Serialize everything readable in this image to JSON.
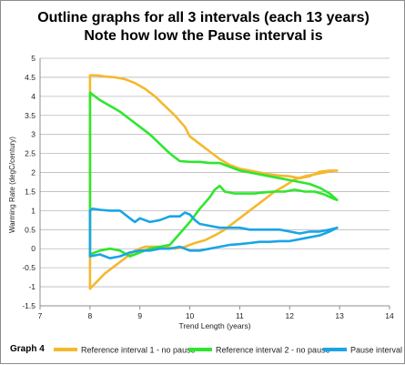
{
  "figure": {
    "title_line1": "Outline graphs for all 3 intervals (each 13 years)",
    "title_line2": "Note how low the Pause interval is",
    "graph_label": "Graph 4"
  },
  "chart_data": {
    "type": "line",
    "title": "Outline graphs for all 3 intervals (each 13 years)",
    "subtitle": "Note how low the Pause interval is",
    "xlabel": "Trend Length  (years)",
    "ylabel": "Warming Rate (degC/century)",
    "xlim": [
      7,
      14
    ],
    "ylim": [
      -1.5,
      5
    ],
    "xticks": [
      "7",
      "8",
      "9",
      "10",
      "11",
      "12",
      "13",
      "14"
    ],
    "yticks": [
      "-1.5",
      "-1",
      "-0.5",
      "0",
      "0.5",
      "1",
      "1.5",
      "2",
      "2.5",
      "3",
      "3.5",
      "4",
      "4.5",
      "5"
    ],
    "grid": "horizontal",
    "legend_position": "bottom",
    "series": [
      {
        "name": "Reference interval  1 - no pause",
        "color": "#f5b82e",
        "points": [
          [
            8,
            -1.05
          ],
          [
            8.15,
            -0.85
          ],
          [
            8.3,
            -0.65
          ],
          [
            8.5,
            -0.45
          ],
          [
            8.7,
            -0.25
          ],
          [
            8.9,
            -0.05
          ],
          [
            9.1,
            0.05
          ],
          [
            9.3,
            0.05
          ],
          [
            9.5,
            0.05
          ],
          [
            9.7,
            0.0
          ],
          [
            9.9,
            0.05
          ],
          [
            10.1,
            0.15
          ],
          [
            10.3,
            0.22
          ],
          [
            10.5,
            0.35
          ],
          [
            10.7,
            0.5
          ],
          [
            10.9,
            0.7
          ],
          [
            11.1,
            0.9
          ],
          [
            11.3,
            1.1
          ],
          [
            11.5,
            1.3
          ],
          [
            11.7,
            1.5
          ],
          [
            11.9,
            1.65
          ],
          [
            12.1,
            1.82
          ],
          [
            12.3,
            1.9
          ],
          [
            12.5,
            1.95
          ],
          [
            12.7,
            2.0
          ],
          [
            12.9,
            2.05
          ],
          [
            12.95,
            2.05
          ],
          [
            12.8,
            2.05
          ],
          [
            12.6,
            2.02
          ],
          [
            12.4,
            1.9
          ],
          [
            12.2,
            1.85
          ],
          [
            12.0,
            1.9
          ],
          [
            11.8,
            1.92
          ],
          [
            11.6,
            1.95
          ],
          [
            11.4,
            2.0
          ],
          [
            11.2,
            2.05
          ],
          [
            11.0,
            2.1
          ],
          [
            10.8,
            2.2
          ],
          [
            10.6,
            2.35
          ],
          [
            10.4,
            2.55
          ],
          [
            10.2,
            2.75
          ],
          [
            10.0,
            2.95
          ],
          [
            9.9,
            3.2
          ],
          [
            9.7,
            3.5
          ],
          [
            9.5,
            3.75
          ],
          [
            9.3,
            4.0
          ],
          [
            9.1,
            4.2
          ],
          [
            8.9,
            4.35
          ],
          [
            8.7,
            4.45
          ],
          [
            8.5,
            4.5
          ],
          [
            8.3,
            4.52
          ],
          [
            8.15,
            4.55
          ],
          [
            8,
            4.55
          ],
          [
            8,
            -1.05
          ]
        ]
      },
      {
        "name": "Reference interval  2 - no pause",
        "color": "#2ee62e",
        "points": [
          [
            8,
            -0.15
          ],
          [
            8.2,
            -0.05
          ],
          [
            8.4,
            0.0
          ],
          [
            8.6,
            -0.05
          ],
          [
            8.8,
            -0.2
          ],
          [
            9.0,
            -0.1
          ],
          [
            9.2,
            0.0
          ],
          [
            9.4,
            0.05
          ],
          [
            9.6,
            0.1
          ],
          [
            9.8,
            0.4
          ],
          [
            10.0,
            0.7
          ],
          [
            10.2,
            1.05
          ],
          [
            10.4,
            1.35
          ],
          [
            10.5,
            1.55
          ],
          [
            10.6,
            1.65
          ],
          [
            10.7,
            1.5
          ],
          [
            10.9,
            1.45
          ],
          [
            11.1,
            1.45
          ],
          [
            11.3,
            1.45
          ],
          [
            11.5,
            1.48
          ],
          [
            11.7,
            1.5
          ],
          [
            11.9,
            1.5
          ],
          [
            12.1,
            1.55
          ],
          [
            12.3,
            1.5
          ],
          [
            12.5,
            1.5
          ],
          [
            12.7,
            1.42
          ],
          [
            12.9,
            1.3
          ],
          [
            12.95,
            1.28
          ],
          [
            12.8,
            1.45
          ],
          [
            12.6,
            1.6
          ],
          [
            12.4,
            1.7
          ],
          [
            12.2,
            1.75
          ],
          [
            12.0,
            1.8
          ],
          [
            11.8,
            1.85
          ],
          [
            11.6,
            1.9
          ],
          [
            11.4,
            1.95
          ],
          [
            11.2,
            2.0
          ],
          [
            11.0,
            2.05
          ],
          [
            10.8,
            2.15
          ],
          [
            10.6,
            2.25
          ],
          [
            10.4,
            2.25
          ],
          [
            10.2,
            2.28
          ],
          [
            10.0,
            2.28
          ],
          [
            9.8,
            2.3
          ],
          [
            9.6,
            2.5
          ],
          [
            9.4,
            2.75
          ],
          [
            9.2,
            3.0
          ],
          [
            9.0,
            3.2
          ],
          [
            8.8,
            3.4
          ],
          [
            8.6,
            3.6
          ],
          [
            8.4,
            3.75
          ],
          [
            8.2,
            3.9
          ],
          [
            8.05,
            4.05
          ],
          [
            8,
            4.1
          ],
          [
            8,
            -0.15
          ]
        ]
      },
      {
        "name": "Pause interval",
        "color": "#1aa5e6",
        "points": [
          [
            8,
            -0.2
          ],
          [
            8.2,
            -0.15
          ],
          [
            8.4,
            -0.25
          ],
          [
            8.6,
            -0.2
          ],
          [
            8.8,
            -0.1
          ],
          [
            9.0,
            -0.05
          ],
          [
            9.2,
            -0.05
          ],
          [
            9.4,
            0.0
          ],
          [
            9.6,
            0.0
          ],
          [
            9.8,
            0.05
          ],
          [
            10.0,
            -0.05
          ],
          [
            10.2,
            -0.05
          ],
          [
            10.4,
            0.0
          ],
          [
            10.6,
            0.05
          ],
          [
            10.8,
            0.1
          ],
          [
            11.0,
            0.12
          ],
          [
            11.2,
            0.15
          ],
          [
            11.4,
            0.18
          ],
          [
            11.6,
            0.18
          ],
          [
            11.8,
            0.2
          ],
          [
            12.0,
            0.2
          ],
          [
            12.2,
            0.25
          ],
          [
            12.4,
            0.3
          ],
          [
            12.6,
            0.35
          ],
          [
            12.8,
            0.45
          ],
          [
            12.95,
            0.55
          ],
          [
            12.8,
            0.5
          ],
          [
            12.6,
            0.45
          ],
          [
            12.4,
            0.45
          ],
          [
            12.2,
            0.4
          ],
          [
            12.0,
            0.45
          ],
          [
            11.8,
            0.5
          ],
          [
            11.6,
            0.5
          ],
          [
            11.4,
            0.5
          ],
          [
            11.2,
            0.5
          ],
          [
            11.0,
            0.55
          ],
          [
            10.8,
            0.55
          ],
          [
            10.6,
            0.55
          ],
          [
            10.4,
            0.6
          ],
          [
            10.2,
            0.65
          ],
          [
            10.1,
            0.75
          ],
          [
            10.0,
            0.9
          ],
          [
            9.9,
            0.95
          ],
          [
            9.8,
            0.85
          ],
          [
            9.6,
            0.85
          ],
          [
            9.4,
            0.75
          ],
          [
            9.2,
            0.7
          ],
          [
            9.0,
            0.8
          ],
          [
            8.9,
            0.7
          ],
          [
            8.8,
            0.8
          ],
          [
            8.6,
            1.0
          ],
          [
            8.4,
            1.0
          ],
          [
            8.2,
            1.02
          ],
          [
            8.05,
            1.05
          ],
          [
            8,
            1.0
          ],
          [
            8,
            -0.2
          ]
        ]
      }
    ]
  }
}
